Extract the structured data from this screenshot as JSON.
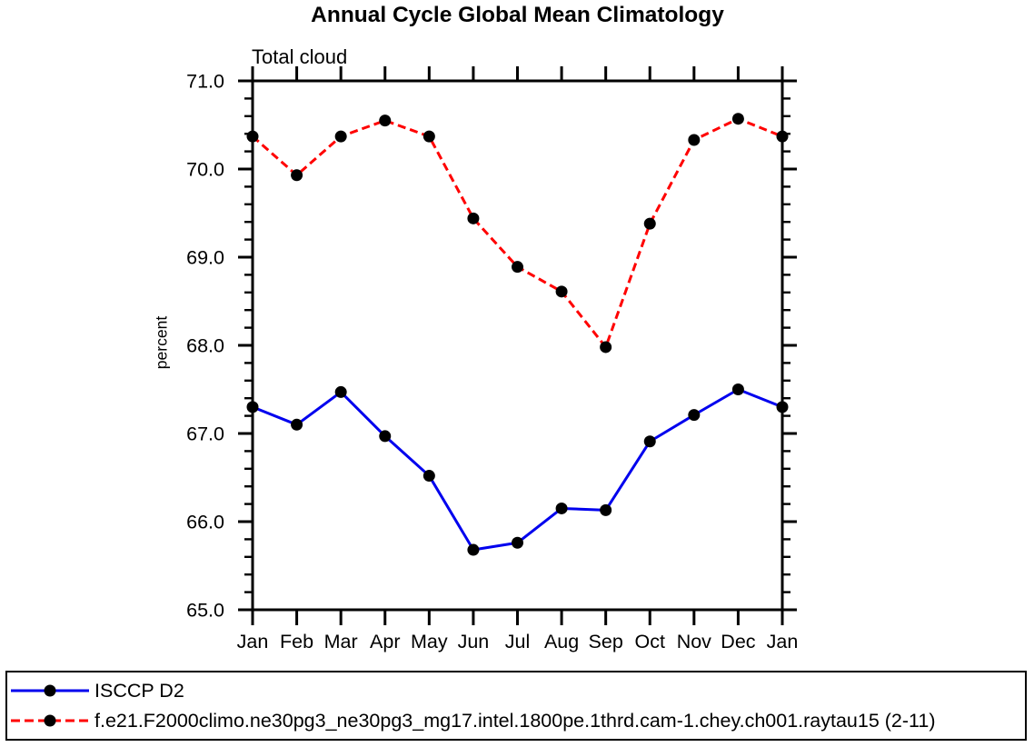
{
  "page": {
    "background": "#ffffff"
  },
  "chart_data": {
    "type": "line",
    "title": "Annual Cycle Global Mean Climatology",
    "subtitle": "Total cloud",
    "ylabel": "percent",
    "xlabel": "",
    "categories": [
      "Jan",
      "Feb",
      "Mar",
      "Apr",
      "May",
      "Jun",
      "Jul",
      "Aug",
      "Sep",
      "Oct",
      "Nov",
      "Dec",
      "Jan"
    ],
    "ylim": [
      65.0,
      71.0
    ],
    "ytick_major": [
      65.0,
      66.0,
      67.0,
      68.0,
      69.0,
      70.0,
      71.0
    ],
    "ytick_labels": [
      "65.0",
      "66.0",
      "67.0",
      "68.0",
      "69.0",
      "70.0",
      "71.0"
    ],
    "ytick_minor_interval": 0.2,
    "grid": false,
    "legend_position": "bottom",
    "axis_color": "#000000",
    "marker_color": "#000000",
    "series": [
      {
        "name": "ISCCP D2",
        "color": "#0000ee",
        "style": "solid",
        "marker": "circle",
        "values": [
          67.3,
          67.1,
          67.47,
          66.97,
          66.52,
          65.68,
          65.76,
          66.15,
          66.13,
          66.91,
          67.21,
          67.5,
          67.3
        ]
      },
      {
        "name": "f.e21.F2000climo.ne30pg3_ne30pg3_mg17.intel.1800pe.1thrd.cam-1.chey.ch001.raytau15 (2-11)",
        "color": "#ff0000",
        "style": "dashed",
        "marker": "circle",
        "values": [
          70.37,
          69.93,
          70.37,
          70.55,
          70.37,
          69.44,
          68.89,
          68.61,
          67.98,
          69.38,
          70.33,
          70.57,
          70.37
        ]
      }
    ]
  }
}
